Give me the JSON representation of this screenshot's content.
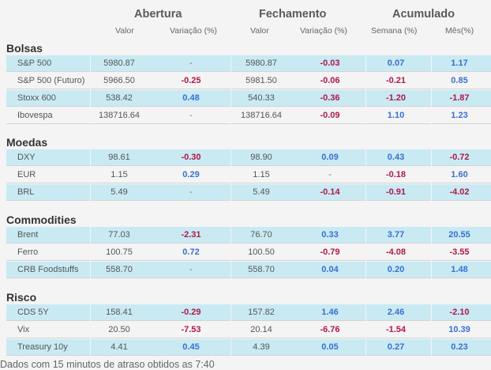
{
  "header": {
    "groups": [
      "Abertura",
      "Fechamento",
      "Acumulado"
    ],
    "columns": [
      "Valor",
      "Variação (%)",
      "Valor",
      "Variação (%)",
      "Semana (%)",
      "Mês(%)"
    ]
  },
  "sections": [
    {
      "title": "Bolsas",
      "rows": [
        {
          "name": "S&P 500",
          "cells": [
            "5980.87",
            "-",
            "5980.87",
            "-0.03",
            "0.07",
            "1.17"
          ]
        },
        {
          "name": "S&P 500 (Futuro)",
          "cells": [
            "5966.50",
            "-0.25",
            "5981.50",
            "-0.06",
            "-0.21",
            "0.85"
          ]
        },
        {
          "name": "Stoxx 600",
          "cells": [
            "538.42",
            "0.48",
            "540.33",
            "-0.36",
            "-1.20",
            "-1.87"
          ]
        },
        {
          "name": "Ibovespa",
          "cells": [
            "138716.64",
            "-",
            "138716.64",
            "-0.09",
            "1.10",
            "1.23"
          ]
        }
      ]
    },
    {
      "title": "Moedas",
      "rows": [
        {
          "name": "DXY",
          "cells": [
            "98.61",
            "-0.30",
            "98.90",
            "0.09",
            "0.43",
            "-0.72"
          ]
        },
        {
          "name": "EUR",
          "cells": [
            "1.15",
            "0.29",
            "1.15",
            "-",
            "-0.18",
            "1.60"
          ]
        },
        {
          "name": "BRL",
          "cells": [
            "5.49",
            "-",
            "5.49",
            "-0.14",
            "-0.91",
            "-4.02"
          ]
        }
      ]
    },
    {
      "title": "Commodities",
      "rows": [
        {
          "name": "Brent",
          "cells": [
            "77.03",
            "-2.31",
            "76.70",
            "0.33",
            "3.77",
            "20.55"
          ]
        },
        {
          "name": "Ferro",
          "cells": [
            "100.75",
            "0.72",
            "100.50",
            "-0.79",
            "-4.08",
            "-3.55"
          ]
        },
        {
          "name": "CRB Foodstuffs",
          "cells": [
            "558.70",
            "-",
            "558.70",
            "0.04",
            "0.20",
            "1.48"
          ]
        }
      ]
    },
    {
      "title": "Risco",
      "rows": [
        {
          "name": "CDS 5Y",
          "cells": [
            "158.41",
            "-0.29",
            "157.82",
            "1.46",
            "2.46",
            "-2.10"
          ]
        },
        {
          "name": "Vix",
          "cells": [
            "20.50",
            "-7.53",
            "20.14",
            "-6.76",
            "-1.54",
            "10.39"
          ]
        },
        {
          "name": "Treasury 10y",
          "cells": [
            "4.41",
            "0.45",
            "4.39",
            "0.05",
            "0.27",
            "0.23"
          ]
        }
      ]
    }
  ],
  "colors": {
    "positive": "#3a6fd0",
    "negative": "#b0184a",
    "row_highlight": "#c9eaf3"
  },
  "footer": "Dados com 15 minutos de atraso obtidos as 7:40"
}
